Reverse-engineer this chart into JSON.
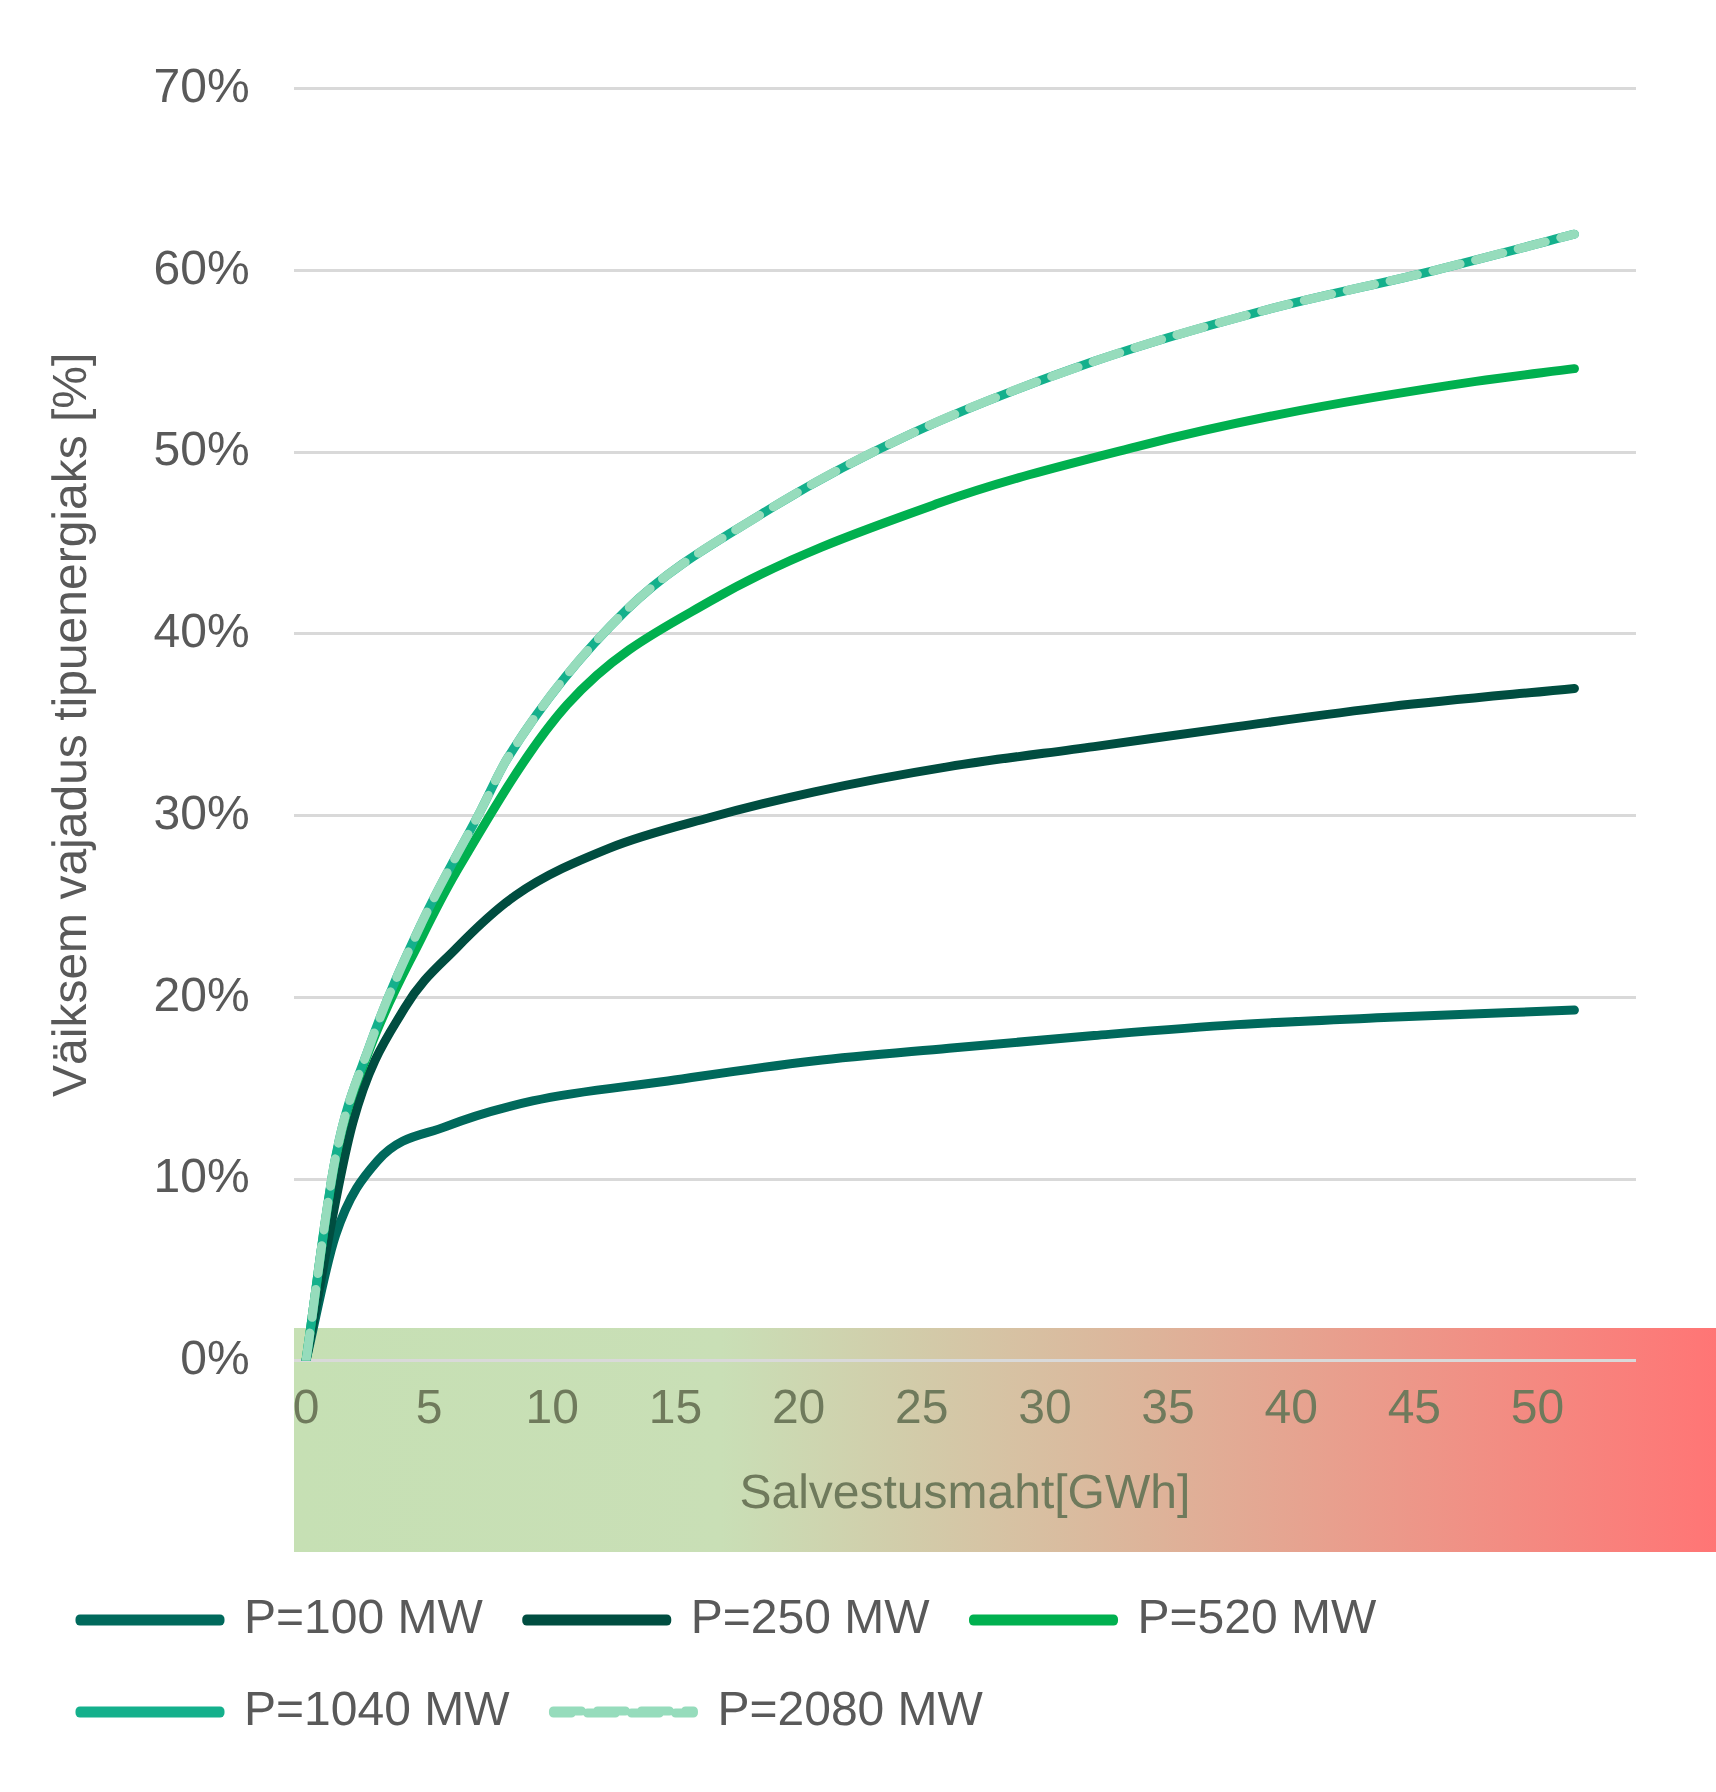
{
  "chart_data": {
    "type": "line",
    "xlabel": "Salvestusmaht[GWh]",
    "ylabel": "Väiksem vajadus tipuenergiaks [%]",
    "xlim": [
      -0.5,
      54
    ],
    "xticks": [
      0,
      5,
      10,
      15,
      20,
      25,
      30,
      35,
      40,
      45,
      50
    ],
    "ylim": [
      0,
      70
    ],
    "yticks": [
      {
        "value": 0,
        "label": "0%"
      },
      {
        "value": 10,
        "label": "10%"
      },
      {
        "value": 20,
        "label": "20%"
      },
      {
        "value": 30,
        "label": "30%"
      },
      {
        "value": 40,
        "label": "40%"
      },
      {
        "value": 50,
        "label": "50%"
      },
      {
        "value": 60,
        "label": "60%"
      },
      {
        "value": 70,
        "label": "70%"
      }
    ],
    "grid": "y",
    "legend": "bottom",
    "marker": "none",
    "series": [
      {
        "name": "P=100 MW",
        "color": "#00695c",
        "line_style": "solid",
        "x": [
          0,
          1.2,
          2.9,
          5.7,
          9.2,
          14.7,
          20.6,
          26.1,
          32.0,
          37.8,
          44.0,
          51.5
        ],
        "values": [
          0,
          6.9,
          11.0,
          12.9,
          14.3,
          15.4,
          16.5,
          17.2,
          17.9,
          18.5,
          18.9,
          19.3
        ]
      },
      {
        "name": "P=250 MW",
        "color": "#004d40",
        "line_style": "solid",
        "x": [
          0,
          1.9,
          4.0,
          6.1,
          8.5,
          12.3,
          16.4,
          20.6,
          26.1,
          32.0,
          37.8,
          44.0,
          51.5
        ],
        "values": [
          0,
          13.1,
          19.4,
          22.7,
          25.6,
          28.2,
          29.9,
          31.3,
          32.7,
          33.8,
          34.9,
          36.0,
          37.0
        ]
      },
      {
        "name": "P=520 MW",
        "color": "#00b04f",
        "line_style": "solid",
        "x": [
          0,
          1.2,
          2.6,
          4.7,
          6.1,
          10.6,
          16.4,
          25.7,
          33.7,
          39.6,
          47.5,
          51.5
        ],
        "values": [
          0,
          11.1,
          17.2,
          23.3,
          26.9,
          36.1,
          41.8,
          47.2,
          50.3,
          52.1,
          53.9,
          54.6
        ]
      },
      {
        "name": "P=1040 MW",
        "color": "#14b08c",
        "line_style": "solid",
        "x": [
          0,
          1.2,
          2.6,
          4.7,
          7.1,
          8.2,
          13.0,
          18.5,
          24.7,
          32.0,
          38.9,
          45.8,
          51.5
        ],
        "values": [
          0,
          11.2,
          17.4,
          24.1,
          30.3,
          33.2,
          41.3,
          46.6,
          51.1,
          55.0,
          57.8,
          60.0,
          62.0
        ]
      },
      {
        "name": "P=2080 MW",
        "color": "#96dcbc",
        "line_style": "dashed",
        "x": [
          0,
          1.2,
          2.6,
          4.7,
          7.1,
          8.2,
          13.0,
          18.5,
          24.7,
          32.0,
          38.9,
          45.8,
          51.5
        ],
        "values": [
          0,
          11.2,
          17.4,
          24.1,
          30.3,
          33.2,
          41.3,
          46.6,
          51.1,
          55.0,
          57.8,
          60.0,
          62.0
        ]
      }
    ]
  }
}
